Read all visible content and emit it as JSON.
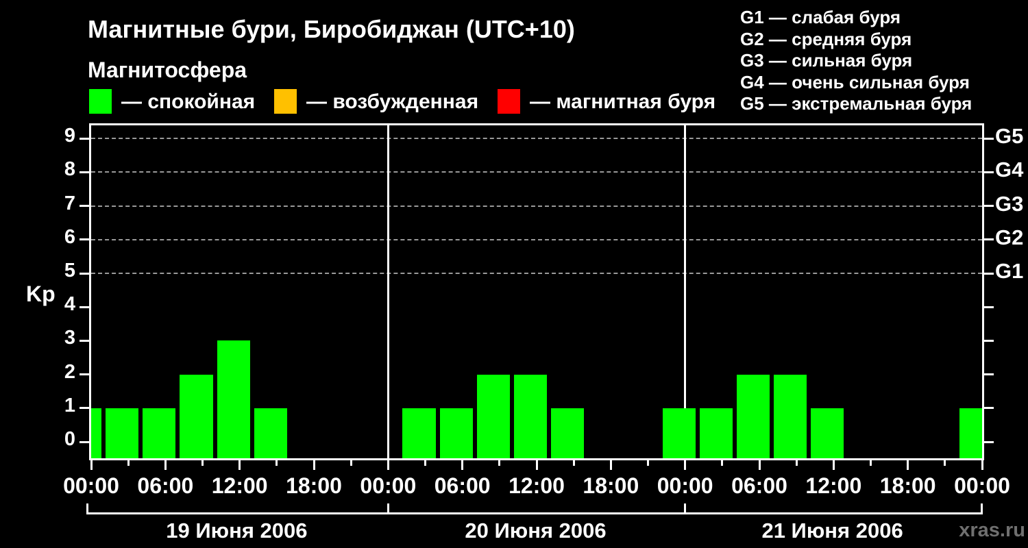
{
  "header": {
    "title": "Магнитные бури, Биробиджан (UTC+10)",
    "subtitle": "Магнитосфера"
  },
  "legend": {
    "items": [
      {
        "name": "quiet",
        "color": "#00ff00",
        "label": "— спокойная"
      },
      {
        "name": "excited",
        "color": "#ffc000",
        "label": "— возбужденная"
      },
      {
        "name": "storm",
        "color": "#ff0000",
        "label": "— магнитная буря"
      }
    ]
  },
  "storm_scale_legend": {
    "lines": [
      "G1 — слабая буря",
      "G2 — средняя буря",
      "G3 — сильная буря",
      "G4 — очень сильная буря",
      "G5 — экстремальная буря"
    ]
  },
  "watermark": "xras.ru",
  "chart_data": {
    "type": "bar",
    "title": "Магнитные бури, Биробиджан (UTC+10)",
    "ylabel": "Kp",
    "ylim": [
      0,
      9
    ],
    "y_ticks": [
      0,
      1,
      2,
      3,
      4,
      5,
      6,
      7,
      8,
      9
    ],
    "grid_levels": [
      5,
      6,
      7,
      8,
      9
    ],
    "right_axis_labels": [
      {
        "kp": 5,
        "label": "G1"
      },
      {
        "kp": 6,
        "label": "G2"
      },
      {
        "kp": 7,
        "label": "G3"
      },
      {
        "kp": 8,
        "label": "G4"
      },
      {
        "kp": 9,
        "label": "G5"
      }
    ],
    "x_axis": {
      "hours_start": 0,
      "hours_end": 72,
      "tick_interval_hours": 3,
      "major_tick_every_hours": 6,
      "major_labels_cycle": [
        "00:00",
        "06:00",
        "12:00",
        "18:00"
      ],
      "day_boundary_hours": [
        24,
        48
      ]
    },
    "days": [
      "19 Июня 2006",
      "20 Июня 2006",
      "21 Июня 2006"
    ],
    "slot_duration_hours": 3,
    "slots": [
      {
        "start_hour": -2,
        "kp": 1
      },
      {
        "start_hour": 1,
        "kp": 1
      },
      {
        "start_hour": 4,
        "kp": 1
      },
      {
        "start_hour": 7,
        "kp": 2
      },
      {
        "start_hour": 10,
        "kp": 3
      },
      {
        "start_hour": 13,
        "kp": 1
      },
      {
        "start_hour": 16,
        "kp": 0
      },
      {
        "start_hour": 19,
        "kp": 0
      },
      {
        "start_hour": 22,
        "kp": 0
      },
      {
        "start_hour": 25,
        "kp": 1
      },
      {
        "start_hour": 28,
        "kp": 1
      },
      {
        "start_hour": 31,
        "kp": 2
      },
      {
        "start_hour": 34,
        "kp": 2
      },
      {
        "start_hour": 37,
        "kp": 1
      },
      {
        "start_hour": 40,
        "kp": 0
      },
      {
        "start_hour": 43,
        "kp": 0
      },
      {
        "start_hour": 46,
        "kp": 1
      },
      {
        "start_hour": 49,
        "kp": 1
      },
      {
        "start_hour": 52,
        "kp": 2
      },
      {
        "start_hour": 55,
        "kp": 2
      },
      {
        "start_hour": 58,
        "kp": 1
      },
      {
        "start_hour": 61,
        "kp": 0
      },
      {
        "start_hour": 64,
        "kp": 0
      },
      {
        "start_hour": 67,
        "kp": 0
      },
      {
        "start_hour": 70,
        "kp": 1
      }
    ],
    "colors": {
      "quiet": "#00ff00",
      "excited": "#ffc000",
      "storm": "#ff0000",
      "kp_excited_min": 4,
      "kp_storm_min": 5
    }
  }
}
